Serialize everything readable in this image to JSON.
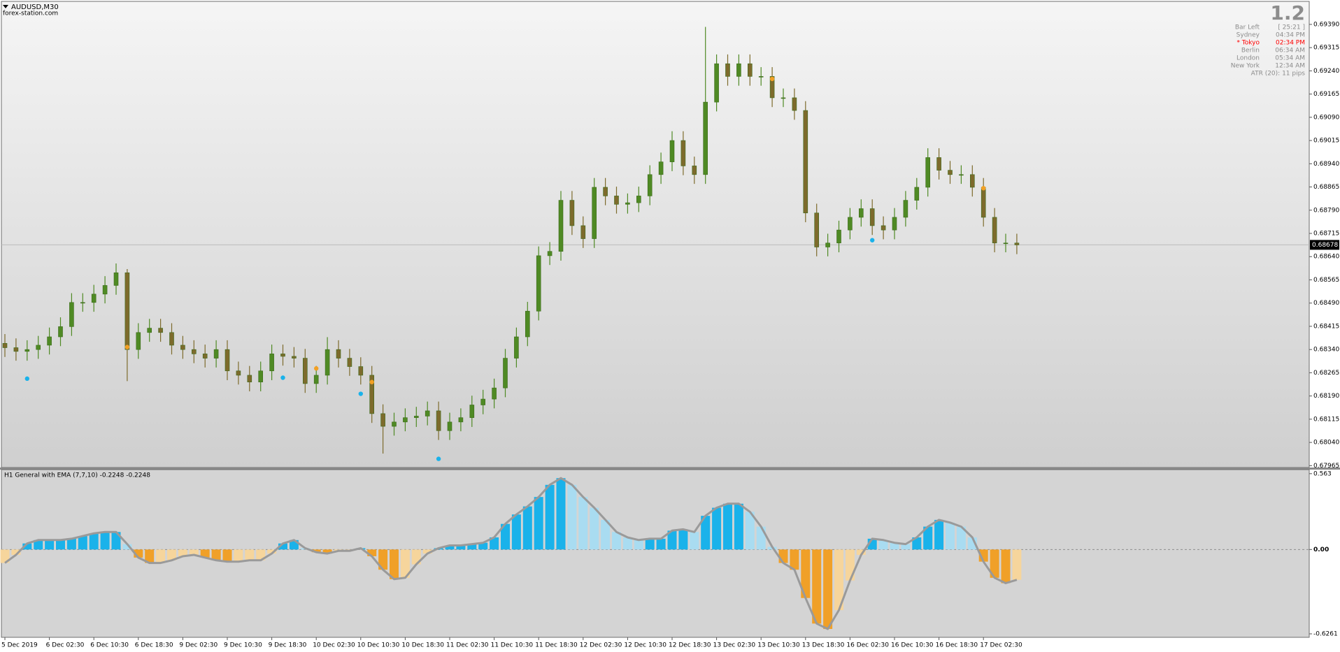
{
  "chart_data": [
    {
      "type": "candlestick",
      "title": "AUDUSD,M30",
      "subtitle": "forex-station.com",
      "colors": {
        "up": "#4f8a24",
        "down": "#7d6b2c",
        "last_price_line": "#bcbcbc"
      },
      "ylim": [
        0.67959,
        0.69462
      ],
      "yticks": [
        {
          "value": 0.6939,
          "label": "0.69390"
        },
        0.69315,
        {
          "value": 0.6924,
          "label": "0.69240"
        },
        0.69165,
        {
          "value": 0.6909,
          "label": "0.69090"
        },
        0.69015,
        {
          "value": 0.6894,
          "label": "0.68940"
        },
        0.68865,
        {
          "value": 0.6879,
          "label": "0.68790"
        },
        0.68715,
        {
          "value": 0.6864,
          "label": "0.68640"
        },
        0.68565,
        {
          "value": 0.6849,
          "label": "0.68490"
        },
        0.68415,
        {
          "value": 0.6834,
          "label": "0.68340"
        },
        0.68265,
        {
          "value": 0.6819,
          "label": "0.68190"
        },
        0.68115,
        {
          "value": 0.6804,
          "label": "0.68040"
        },
        0.67965
      ],
      "last_price": 0.68678,
      "open": [
        0.6836,
        0.68346,
        0.68334,
        0.6834,
        0.68354,
        0.68381,
        0.68414,
        0.68492,
        0.68492,
        0.68519,
        0.68547,
        0.68588,
        0.6834,
        0.68395,
        0.68409,
        0.68395,
        0.68354,
        0.6834,
        0.68326,
        0.68312,
        0.6834,
        0.68271,
        0.68257,
        0.68235,
        0.68271,
        0.68326,
        0.68318,
        0.68312,
        0.6823,
        0.68257,
        0.6834,
        0.68312,
        0.68285,
        0.68257,
        0.68133,
        0.68092,
        0.68106,
        0.6812,
        0.68125,
        0.68142,
        0.68078,
        0.68106,
        0.6812,
        0.68161,
        0.6818,
        0.68216,
        0.68312,
        0.68381,
        0.68464,
        0.68643,
        0.68657,
        0.68822,
        0.6874,
        0.68698,
        0.68864,
        0.68836,
        0.68809,
        0.68814,
        0.68836,
        0.68905,
        0.68946,
        0.69015,
        0.68933,
        0.68905,
        0.69139,
        0.69263,
        0.69222,
        0.69263,
        0.69222,
        0.69222,
        0.69153,
        0.69153,
        0.69112,
        0.68781,
        0.68671,
        0.68684,
        0.68726,
        0.68767,
        0.68795,
        0.6874,
        0.68726,
        0.68767,
        0.68822,
        0.68864,
        0.6896,
        0.68919,
        0.68905,
        0.68905,
        0.68864,
        0.68767,
        0.68684,
        0.68684
      ],
      "high": [
        0.6839,
        0.68376,
        0.6837,
        0.68384,
        0.68411,
        0.68444,
        0.68522,
        0.68522,
        0.68549,
        0.68577,
        0.68618,
        0.686,
        0.68425,
        0.68439,
        0.68439,
        0.68425,
        0.68384,
        0.6837,
        0.68356,
        0.6837,
        0.6837,
        0.68301,
        0.68287,
        0.68301,
        0.68356,
        0.68356,
        0.68348,
        0.68342,
        0.68287,
        0.6838,
        0.6837,
        0.68342,
        0.68315,
        0.68287,
        0.68163,
        0.68136,
        0.6815,
        0.68155,
        0.68172,
        0.68172,
        0.68136,
        0.6815,
        0.68191,
        0.6821,
        0.68246,
        0.68342,
        0.68411,
        0.68494,
        0.68673,
        0.68687,
        0.68852,
        0.68852,
        0.6877,
        0.68894,
        0.68894,
        0.68866,
        0.68844,
        0.68866,
        0.68935,
        0.68976,
        0.69045,
        0.69045,
        0.68963,
        0.69382,
        0.69293,
        0.69293,
        0.69293,
        0.69293,
        0.69252,
        0.69252,
        0.69183,
        0.69183,
        0.69142,
        0.68811,
        0.68714,
        0.68756,
        0.68797,
        0.68825,
        0.68825,
        0.6877,
        0.68797,
        0.68852,
        0.68894,
        0.6899,
        0.6899,
        0.68949,
        0.68935,
        0.68935,
        0.68894,
        0.68797,
        0.68714,
        0.68714
      ],
      "low": [
        0.68316,
        0.68304,
        0.68304,
        0.6831,
        0.68324,
        0.68351,
        0.68384,
        0.68462,
        0.68462,
        0.68489,
        0.68517,
        0.68238,
        0.6831,
        0.68365,
        0.68365,
        0.68324,
        0.6831,
        0.68296,
        0.68282,
        0.68282,
        0.68241,
        0.68227,
        0.68205,
        0.68205,
        0.68241,
        0.68288,
        0.68282,
        0.682,
        0.682,
        0.68227,
        0.68282,
        0.68255,
        0.68227,
        0.68103,
        0.68004,
        0.68062,
        0.68076,
        0.6809,
        0.68095,
        0.68048,
        0.68048,
        0.68076,
        0.6809,
        0.68131,
        0.6815,
        0.68186,
        0.68282,
        0.68351,
        0.68434,
        0.68613,
        0.68627,
        0.6871,
        0.68668,
        0.68668,
        0.68806,
        0.68779,
        0.68779,
        0.68784,
        0.68806,
        0.68875,
        0.68916,
        0.68903,
        0.68875,
        0.68875,
        0.69109,
        0.69192,
        0.69192,
        0.69192,
        0.69192,
        0.69123,
        0.69123,
        0.69082,
        0.68751,
        0.68641,
        0.68641,
        0.68654,
        0.68696,
        0.68737,
        0.6871,
        0.68696,
        0.68696,
        0.68737,
        0.68792,
        0.68834,
        0.68889,
        0.68875,
        0.68875,
        0.68834,
        0.68737,
        0.68654,
        0.68654,
        0.68648
      ],
      "close": [
        0.68346,
        0.68334,
        0.6834,
        0.68354,
        0.68381,
        0.68414,
        0.68492,
        0.68492,
        0.68519,
        0.68547,
        0.68588,
        0.6834,
        0.68395,
        0.68409,
        0.68395,
        0.68354,
        0.6834,
        0.68326,
        0.68312,
        0.6834,
        0.68271,
        0.68257,
        0.68235,
        0.68271,
        0.68326,
        0.68318,
        0.68312,
        0.6823,
        0.68257,
        0.6834,
        0.68312,
        0.68285,
        0.68257,
        0.68133,
        0.68092,
        0.68106,
        0.6812,
        0.68125,
        0.68142,
        0.68078,
        0.68106,
        0.6812,
        0.68161,
        0.6818,
        0.68216,
        0.68312,
        0.68381,
        0.68464,
        0.68643,
        0.68657,
        0.68822,
        0.6874,
        0.68698,
        0.68864,
        0.68836,
        0.68809,
        0.68814,
        0.68836,
        0.68905,
        0.68946,
        0.69015,
        0.68933,
        0.68905,
        0.69139,
        0.69263,
        0.69222,
        0.69263,
        0.69222,
        0.69222,
        0.69153,
        0.69153,
        0.69112,
        0.68781,
        0.68671,
        0.68684,
        0.68726,
        0.68767,
        0.68795,
        0.6874,
        0.68726,
        0.68767,
        0.68822,
        0.68864,
        0.6896,
        0.68919,
        0.68905,
        0.68905,
        0.68864,
        0.68767,
        0.68684,
        0.68684,
        0.68678
      ],
      "signals": [
        {
          "color": "#1ab2ea",
          "index": [
            2,
            25,
            32,
            39,
            78
          ],
          "price": [
            0.68246,
            0.68249,
            0.68197,
            0.67987,
            0.68693
          ]
        },
        {
          "color": "#f2a024",
          "index": [
            11,
            28,
            33,
            69,
            88
          ],
          "price": [
            0.68348,
            0.68279,
            0.68235,
            0.69214,
            0.68861
          ]
        }
      ],
      "info_panel": {
        "version": "1.2",
        "rows": [
          [
            "Bar Left",
            "[ 25:21 ]"
          ],
          [
            "Sydney",
            "04:34 PM"
          ],
          [
            "* Tokyo",
            "02:34 PM"
          ],
          [
            "Berlin",
            "06:34 AM"
          ],
          [
            "London",
            "05:34 AM"
          ],
          [
            "New York",
            "12:34 AM"
          ]
        ],
        "highlight_row": 2,
        "color": "#8c8c8c",
        "highlight_color": "#ff0000",
        "footer": "ATR (20): 11 pips"
      }
    },
    {
      "type": "bar",
      "title": "H1 General with EMA (7,7,10) -0.2248 -0.2248",
      "categories": [
        "5 Dec 2019",
        null,
        null,
        null,
        "6 Dec 02:30",
        null,
        null,
        null,
        "6 Dec 10:30",
        null,
        null,
        null,
        "6 Dec 18:30",
        null,
        null,
        null,
        "9 Dec 02:30",
        null,
        null,
        null,
        "9 Dec 10:30",
        null,
        null,
        null,
        "9 Dec 18:30",
        null,
        null,
        null,
        "10 Dec 02:30",
        null,
        null,
        null,
        "10 Dec 10:30",
        null,
        null,
        null,
        "10 Dec 18:30",
        null,
        null,
        null,
        "11 Dec 02:30",
        null,
        null,
        null,
        "11 Dec 10:30",
        null,
        null,
        null,
        "11 Dec 18:30",
        null,
        null,
        null,
        "12 Dec 02:30",
        null,
        null,
        null,
        "12 Dec 10:30",
        null,
        null,
        null,
        "12 Dec 18:30",
        null,
        null,
        null,
        "13 Dec 02:30",
        null,
        null,
        null,
        "13 Dec 10:30",
        null,
        null,
        null,
        "13 Dec 18:30",
        null,
        null,
        null,
        "16 Dec 02:30",
        null,
        null,
        null,
        "16 Dec 10:30",
        null,
        null,
        null,
        "16 Dec 18:30",
        null,
        null,
        null,
        "17 Dec 02:30",
        null,
        null,
        null
      ],
      "values": [
        -0.1,
        -0.04,
        0.045,
        0.07,
        0.07,
        0.07,
        0.08,
        0.1,
        0.12,
        0.13,
        0.13,
        0.04,
        -0.06,
        -0.1,
        -0.1,
        -0.08,
        -0.05,
        -0.04,
        -0.06,
        -0.08,
        -0.09,
        -0.09,
        -0.08,
        -0.08,
        -0.03,
        0.045,
        0.07,
        0.01,
        -0.02,
        -0.03,
        -0.01,
        -0.01,
        0.01,
        -0.05,
        -0.15,
        -0.22,
        -0.21,
        -0.11,
        -0.03,
        0.01,
        0.03,
        0.03,
        0.04,
        0.05,
        0.09,
        0.19,
        0.26,
        0.32,
        0.39,
        0.48,
        0.53,
        0.48,
        0.39,
        0.31,
        0.22,
        0.13,
        0.09,
        0.07,
        0.08,
        0.08,
        0.14,
        0.15,
        0.13,
        0.25,
        0.31,
        0.34,
        0.34,
        0.28,
        0.17,
        0.02,
        -0.1,
        -0.15,
        -0.36,
        -0.55,
        -0.59,
        -0.45,
        -0.23,
        -0.04,
        0.08,
        0.07,
        0.05,
        0.04,
        0.09,
        0.17,
        0.22,
        0.2,
        0.17,
        0.09,
        -0.09,
        -0.21,
        -0.25,
        -0.2248
      ],
      "colors": {
        "up_strong": "#1ab2ea",
        "up_weak": "#a9dcf1",
        "down_strong": "#f0a028",
        "down_weak": "#f6d59c"
      },
      "line_color": "#9a9a9a",
      "zero_line": true,
      "ylim": [
        -0.652,
        0.588
      ],
      "yticks": [
        0.563,
        {
          "value": 0,
          "label": "0.00"
        },
        -0.6261
      ]
    }
  ]
}
